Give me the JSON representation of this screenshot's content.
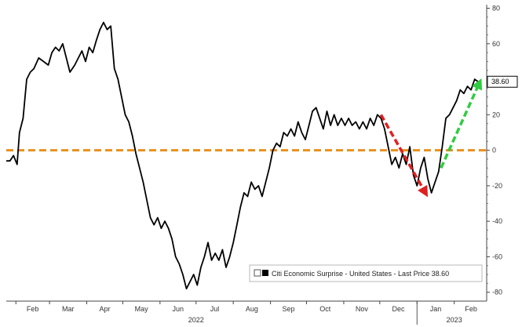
{
  "chart_data": {
    "type": "line",
    "title": "",
    "xlabel": "",
    "ylabel": "",
    "x_range": [
      "2022-01-24",
      "2023-02-28"
    ],
    "ylim": [
      -85,
      82
    ],
    "yticks": [
      80,
      60,
      40,
      20,
      0,
      -20,
      -40,
      -60,
      -80
    ],
    "month_labels": [
      {
        "date": "2022-02-01",
        "label": "Feb"
      },
      {
        "date": "2022-03-01",
        "label": "Mar"
      },
      {
        "date": "2022-04-01",
        "label": "Apr"
      },
      {
        "date": "2022-05-01",
        "label": "May"
      },
      {
        "date": "2022-06-01",
        "label": "Jun"
      },
      {
        "date": "2022-07-01",
        "label": "Jul"
      },
      {
        "date": "2022-08-01",
        "label": "Aug"
      },
      {
        "date": "2022-09-01",
        "label": "Sep"
      },
      {
        "date": "2022-10-01",
        "label": "Oct"
      },
      {
        "date": "2022-11-01",
        "label": "Nov"
      },
      {
        "date": "2022-12-01",
        "label": "Dec"
      },
      {
        "date": "2023-01-01",
        "label": "Jan"
      },
      {
        "date": "2023-02-01",
        "label": "Feb"
      }
    ],
    "year_labels": [
      {
        "date": "2022-07-01",
        "label": "2022"
      },
      {
        "date": "2023-02-01",
        "label": "2023"
      }
    ],
    "year_divider_date": "2023-01-01",
    "series": [
      {
        "name": "Citi Economic Surprise - United States - Last Price",
        "last_value": 38.6,
        "color": "#000000",
        "points": [
          [
            "2022-01-24",
            -6
          ],
          [
            "2022-01-27",
            -6
          ],
          [
            "2022-01-30",
            -3
          ],
          [
            "2022-02-02",
            -8
          ],
          [
            "2022-02-04",
            10
          ],
          [
            "2022-02-07",
            18
          ],
          [
            "2022-02-10",
            40
          ],
          [
            "2022-02-13",
            44
          ],
          [
            "2022-02-16",
            46
          ],
          [
            "2022-02-20",
            52
          ],
          [
            "2022-02-24",
            50
          ],
          [
            "2022-02-28",
            48
          ],
          [
            "2022-03-03",
            55
          ],
          [
            "2022-03-06",
            58
          ],
          [
            "2022-03-09",
            56
          ],
          [
            "2022-03-12",
            60
          ],
          [
            "2022-03-15",
            52
          ],
          [
            "2022-03-18",
            44
          ],
          [
            "2022-03-22",
            48
          ],
          [
            "2022-03-25",
            52
          ],
          [
            "2022-03-28",
            56
          ],
          [
            "2022-03-31",
            50
          ],
          [
            "2022-04-03",
            58
          ],
          [
            "2022-04-06",
            55
          ],
          [
            "2022-04-09",
            62
          ],
          [
            "2022-04-12",
            68
          ],
          [
            "2022-04-15",
            72
          ],
          [
            "2022-04-18",
            68
          ],
          [
            "2022-04-21",
            70
          ],
          [
            "2022-04-24",
            46
          ],
          [
            "2022-04-27",
            40
          ],
          [
            "2022-04-30",
            30
          ],
          [
            "2022-05-03",
            20
          ],
          [
            "2022-05-06",
            16
          ],
          [
            "2022-05-09",
            8
          ],
          [
            "2022-05-12",
            -2
          ],
          [
            "2022-05-15",
            -10
          ],
          [
            "2022-05-18",
            -18
          ],
          [
            "2022-05-21",
            -28
          ],
          [
            "2022-05-24",
            -38
          ],
          [
            "2022-05-27",
            -42
          ],
          [
            "2022-05-30",
            -38
          ],
          [
            "2022-06-02",
            -44
          ],
          [
            "2022-06-05",
            -40
          ],
          [
            "2022-06-08",
            -44
          ],
          [
            "2022-06-11",
            -50
          ],
          [
            "2022-06-14",
            -60
          ],
          [
            "2022-06-17",
            -64
          ],
          [
            "2022-06-20",
            -70
          ],
          [
            "2022-06-23",
            -78
          ],
          [
            "2022-06-26",
            -74
          ],
          [
            "2022-06-29",
            -70
          ],
          [
            "2022-07-02",
            -76
          ],
          [
            "2022-07-05",
            -66
          ],
          [
            "2022-07-08",
            -60
          ],
          [
            "2022-07-11",
            -52
          ],
          [
            "2022-07-14",
            -62
          ],
          [
            "2022-07-17",
            -58
          ],
          [
            "2022-07-20",
            -62
          ],
          [
            "2022-07-23",
            -56
          ],
          [
            "2022-07-26",
            -66
          ],
          [
            "2022-07-29",
            -60
          ],
          [
            "2022-08-01",
            -52
          ],
          [
            "2022-08-04",
            -42
          ],
          [
            "2022-08-07",
            -32
          ],
          [
            "2022-08-10",
            -24
          ],
          [
            "2022-08-13",
            -26
          ],
          [
            "2022-08-16",
            -18
          ],
          [
            "2022-08-19",
            -22
          ],
          [
            "2022-08-22",
            -20
          ],
          [
            "2022-08-25",
            -26
          ],
          [
            "2022-08-28",
            -18
          ],
          [
            "2022-08-31",
            -10
          ],
          [
            "2022-09-03",
            0
          ],
          [
            "2022-09-06",
            4
          ],
          [
            "2022-09-09",
            2
          ],
          [
            "2022-09-12",
            10
          ],
          [
            "2022-09-15",
            8
          ],
          [
            "2022-09-18",
            12
          ],
          [
            "2022-09-21",
            8
          ],
          [
            "2022-09-24",
            16
          ],
          [
            "2022-09-27",
            10
          ],
          [
            "2022-09-30",
            6
          ],
          [
            "2022-10-03",
            14
          ],
          [
            "2022-10-06",
            22
          ],
          [
            "2022-10-09",
            24
          ],
          [
            "2022-10-12",
            18
          ],
          [
            "2022-10-15",
            12
          ],
          [
            "2022-10-18",
            22
          ],
          [
            "2022-10-21",
            14
          ],
          [
            "2022-10-24",
            20
          ],
          [
            "2022-10-27",
            14
          ],
          [
            "2022-10-30",
            18
          ],
          [
            "2022-11-02",
            14
          ],
          [
            "2022-11-05",
            18
          ],
          [
            "2022-11-08",
            14
          ],
          [
            "2022-11-11",
            16
          ],
          [
            "2022-11-14",
            12
          ],
          [
            "2022-11-17",
            16
          ],
          [
            "2022-11-20",
            12
          ],
          [
            "2022-11-23",
            18
          ],
          [
            "2022-11-26",
            14
          ],
          [
            "2022-11-29",
            20
          ],
          [
            "2022-12-02",
            18
          ],
          [
            "2022-12-05",
            12
          ],
          [
            "2022-12-08",
            2
          ],
          [
            "2022-12-11",
            -8
          ],
          [
            "2022-12-14",
            -4
          ],
          [
            "2022-12-17",
            -10
          ],
          [
            "2022-12-20",
            -2
          ],
          [
            "2022-12-23",
            -8
          ],
          [
            "2022-12-26",
            2
          ],
          [
            "2022-12-29",
            -14
          ],
          [
            "2023-01-01",
            -20
          ],
          [
            "2023-01-04",
            -10
          ],
          [
            "2023-01-07",
            -4
          ],
          [
            "2023-01-10",
            -16
          ],
          [
            "2023-01-13",
            -24
          ],
          [
            "2023-01-16",
            -18
          ],
          [
            "2023-01-19",
            -12
          ],
          [
            "2023-01-22",
            2
          ],
          [
            "2023-01-25",
            18
          ],
          [
            "2023-01-28",
            20
          ],
          [
            "2023-01-31",
            24
          ],
          [
            "2023-02-03",
            28
          ],
          [
            "2023-02-06",
            34
          ],
          [
            "2023-02-09",
            32
          ],
          [
            "2023-02-12",
            36
          ],
          [
            "2023-02-15",
            34
          ],
          [
            "2023-02-18",
            40
          ],
          [
            "2023-02-21",
            38.6
          ]
        ]
      }
    ],
    "zero_line": {
      "value": 0,
      "color": "#e8901e",
      "style": "dashed"
    },
    "annotations": [
      {
        "type": "arrow",
        "color": "#e02020",
        "from": [
          "2022-12-02",
          20
        ],
        "to": [
          "2023-01-08",
          -24
        ]
      },
      {
        "type": "arrow",
        "color": "#2ecc40",
        "from": [
          "2023-01-21",
          -10
        ],
        "to": [
          "2023-02-22",
          38
        ]
      }
    ],
    "legend": {
      "label": "Citi Economic Surprise - United States - Last Price 38.60",
      "placement": "bottom-right"
    },
    "last_price_label": "38.60",
    "grid": false
  }
}
